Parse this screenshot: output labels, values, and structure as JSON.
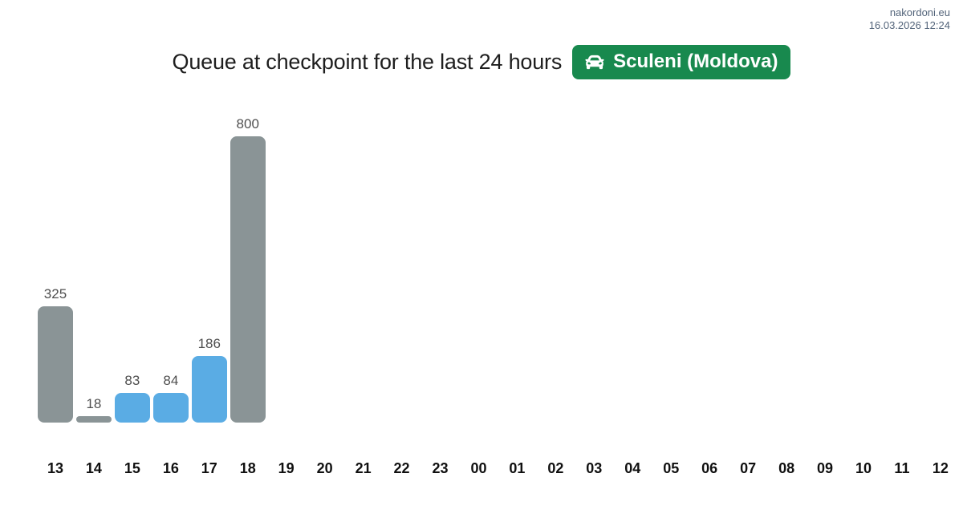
{
  "meta": {
    "site": "nakordoni.eu",
    "timestamp": "16.03.2026 12:24"
  },
  "header": {
    "title": "Queue at checkpoint for the last 24 hours",
    "badge": {
      "label": "Sculeni (Moldova)",
      "icon": "car-icon",
      "bg_color": "#18894e",
      "text_color": "#ffffff"
    }
  },
  "chart_data": {
    "type": "bar",
    "title": "Queue at checkpoint for the last 24 hours",
    "categories": [
      "13",
      "14",
      "15",
      "16",
      "17",
      "18",
      "19",
      "20",
      "21",
      "22",
      "23",
      "00",
      "01",
      "02",
      "03",
      "04",
      "05",
      "06",
      "07",
      "08",
      "09",
      "10",
      "11",
      "12"
    ],
    "values": [
      325,
      18,
      83,
      84,
      186,
      800,
      null,
      null,
      null,
      null,
      null,
      null,
      null,
      null,
      null,
      null,
      null,
      null,
      null,
      null,
      null,
      null,
      null,
      null
    ],
    "bar_color_keys": [
      "gray",
      "gray",
      "blue",
      "blue",
      "blue",
      "gray",
      null,
      null,
      null,
      null,
      null,
      null,
      null,
      null,
      null,
      null,
      null,
      null,
      null,
      null,
      null,
      null,
      null,
      null
    ],
    "colors": {
      "gray": "#8a9496",
      "blue": "#5aace4"
    },
    "value_label_color": "#4f4f4f",
    "axis_label_color": "#101010",
    "ylim": [
      0,
      800
    ],
    "xlabel": "",
    "ylabel": "",
    "grid": false,
    "legend": false,
    "value_labels_shown": true
  }
}
